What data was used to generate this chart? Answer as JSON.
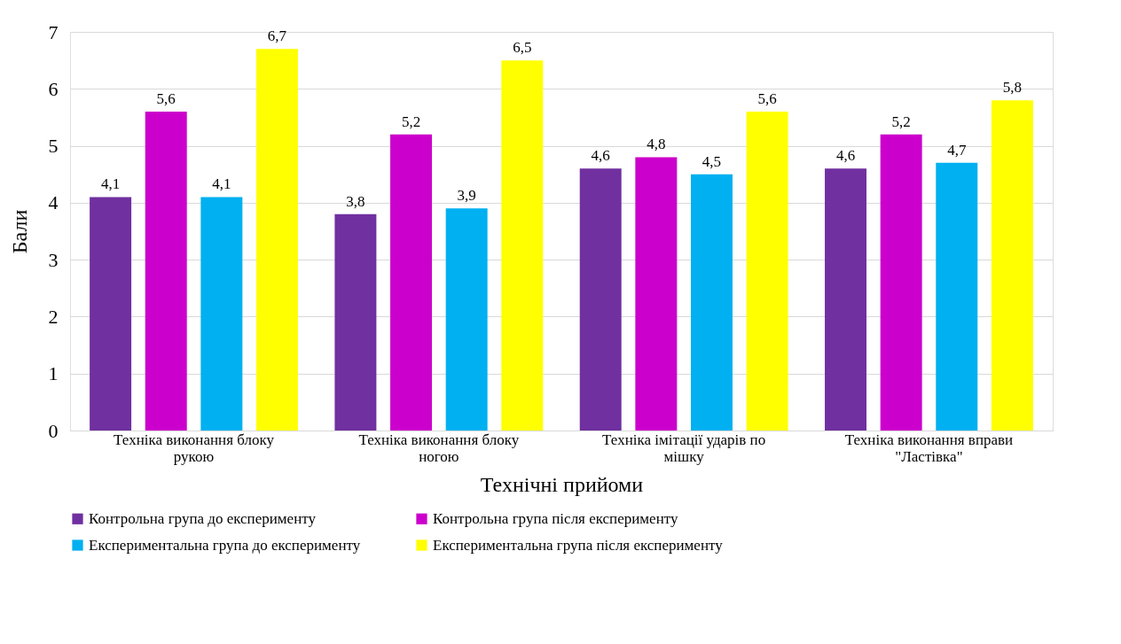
{
  "chart_data": {
    "type": "bar",
    "xlabel": "Технічні прийоми",
    "ylabel": "Бали",
    "categories": [
      "Техніка виконання блоку\nрукою",
      "Техніка виконання блоку\nногою",
      "Техніка імітації ударів по\nмішку",
      "Техніка виконання вправи\n\"Ластівка\""
    ],
    "series": [
      {
        "name": "Контрольна група до експерименту",
        "color": "#7030a0",
        "values": [
          4.1,
          3.8,
          4.6,
          4.6
        ],
        "value_labels": [
          "4,1",
          "3,8",
          "4,6",
          "4,6"
        ]
      },
      {
        "name": "Контрольна група після експерименту",
        "color": "#cc00cc",
        "values": [
          5.6,
          5.2,
          4.8,
          5.2
        ],
        "value_labels": [
          "5,6",
          "5,2",
          "4,8",
          "5,2"
        ]
      },
      {
        "name": "Експериментальна група до експерименту",
        "color": "#00b0f0",
        "values": [
          4.1,
          3.9,
          4.5,
          4.7
        ],
        "value_labels": [
          "4,1",
          "3,9",
          "4,5",
          "4,7"
        ]
      },
      {
        "name": "Експериментальна група після експерименту",
        "color": "#ffff00",
        "values": [
          6.7,
          6.5,
          5.6,
          5.8
        ],
        "value_labels": [
          "6,7",
          "6,5",
          "5,6",
          "5,8"
        ]
      }
    ],
    "ylim": [
      0,
      7
    ],
    "yticks": [
      0,
      1,
      2,
      3,
      4,
      5,
      6,
      7
    ],
    "grid": "y",
    "legend": "bottom"
  }
}
